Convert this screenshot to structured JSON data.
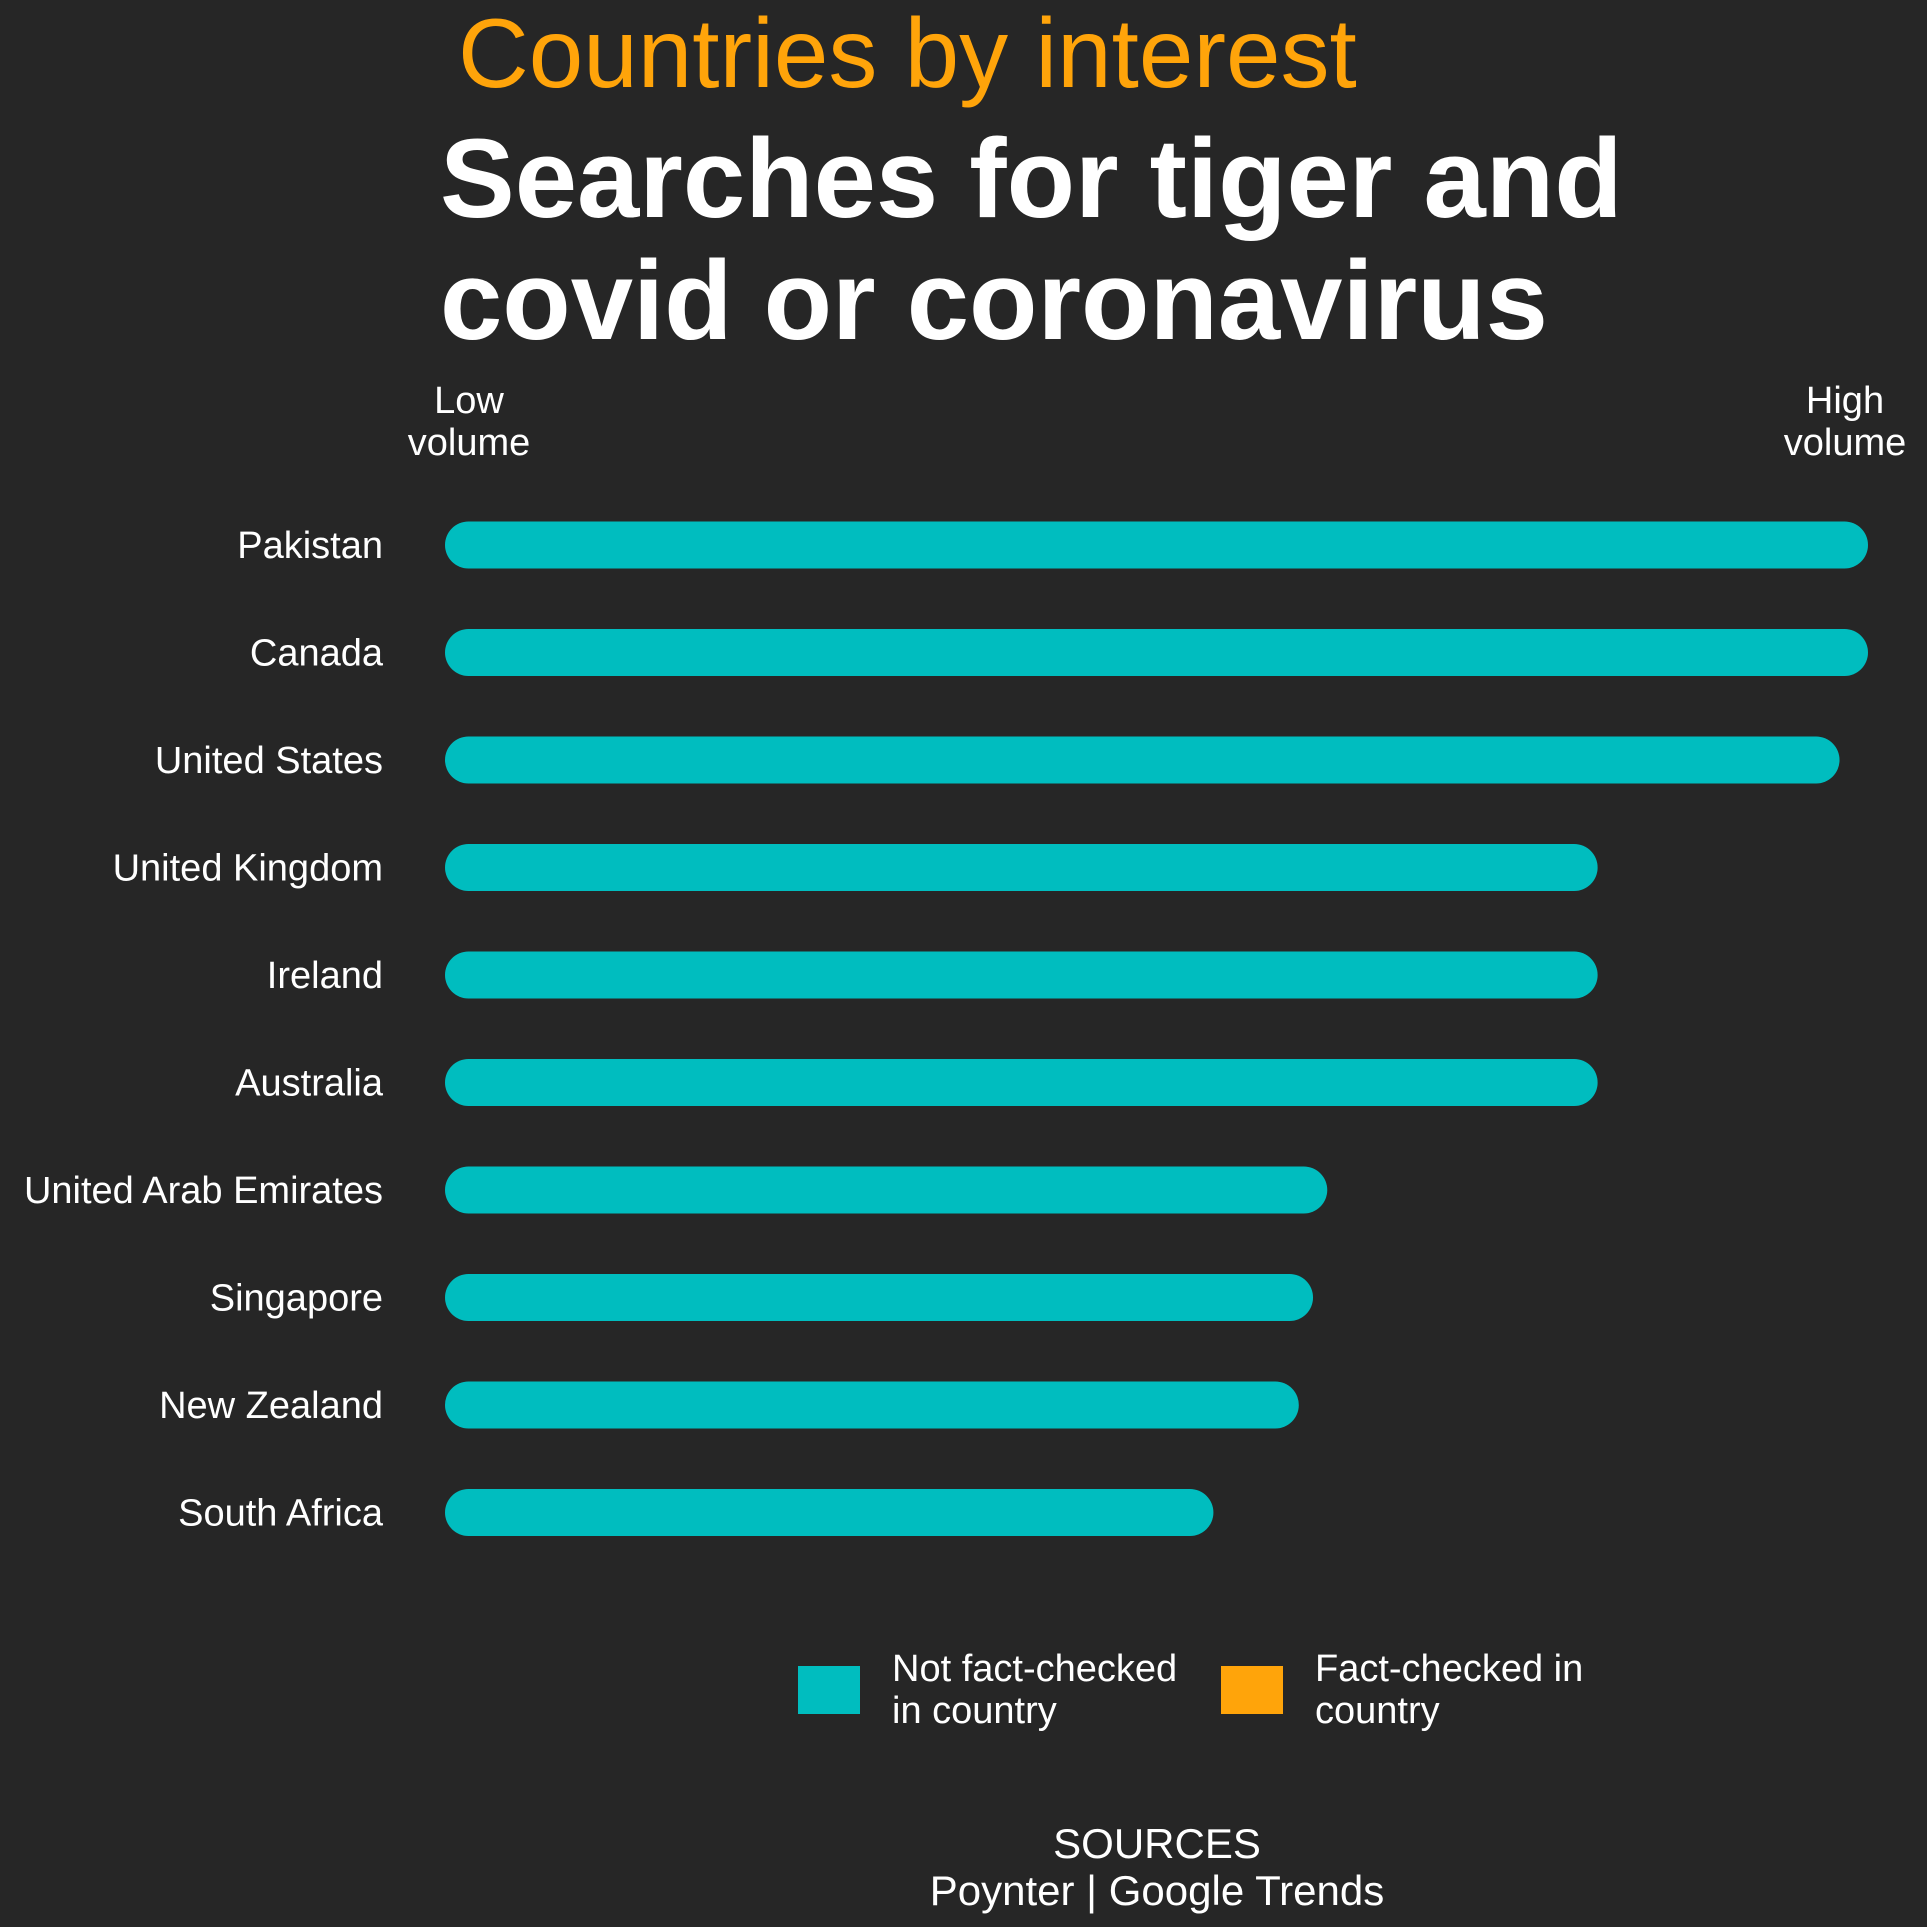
{
  "kicker": "Countries by interest",
  "headline": "Searches for tiger and covid or coronavirus",
  "axis": {
    "low_label": "Low volume",
    "high_label": "High volume"
  },
  "colors": {
    "background": "#262626",
    "not_fact_checked": "#00bdbf",
    "fact_checked": "#ffa40a",
    "kicker": "#ffa40a"
  },
  "legend": {
    "not_fact_checked": "Not fact-checked in country",
    "fact_checked": "Fact-checked in country"
  },
  "sources": {
    "heading": "SOURCES",
    "text": "Poynter | Google Trends"
  },
  "chart_data": {
    "type": "bar",
    "orientation": "horizontal",
    "value_scale": "relative search volume (0 = low, 100 = high)",
    "xlim": [
      0,
      100
    ],
    "categories": [
      "Pakistan",
      "Canada",
      "United States",
      "United Kingdom",
      "Ireland",
      "Australia",
      "United Arab Emirates",
      "Singapore",
      "New Zealand",
      "South Africa"
    ],
    "values": [
      100,
      100,
      98,
      81,
      81,
      81,
      62,
      61,
      60,
      54
    ],
    "fact_checked": [
      false,
      false,
      false,
      false,
      false,
      false,
      false,
      false,
      false,
      false
    ],
    "legend_position": "bottom"
  }
}
